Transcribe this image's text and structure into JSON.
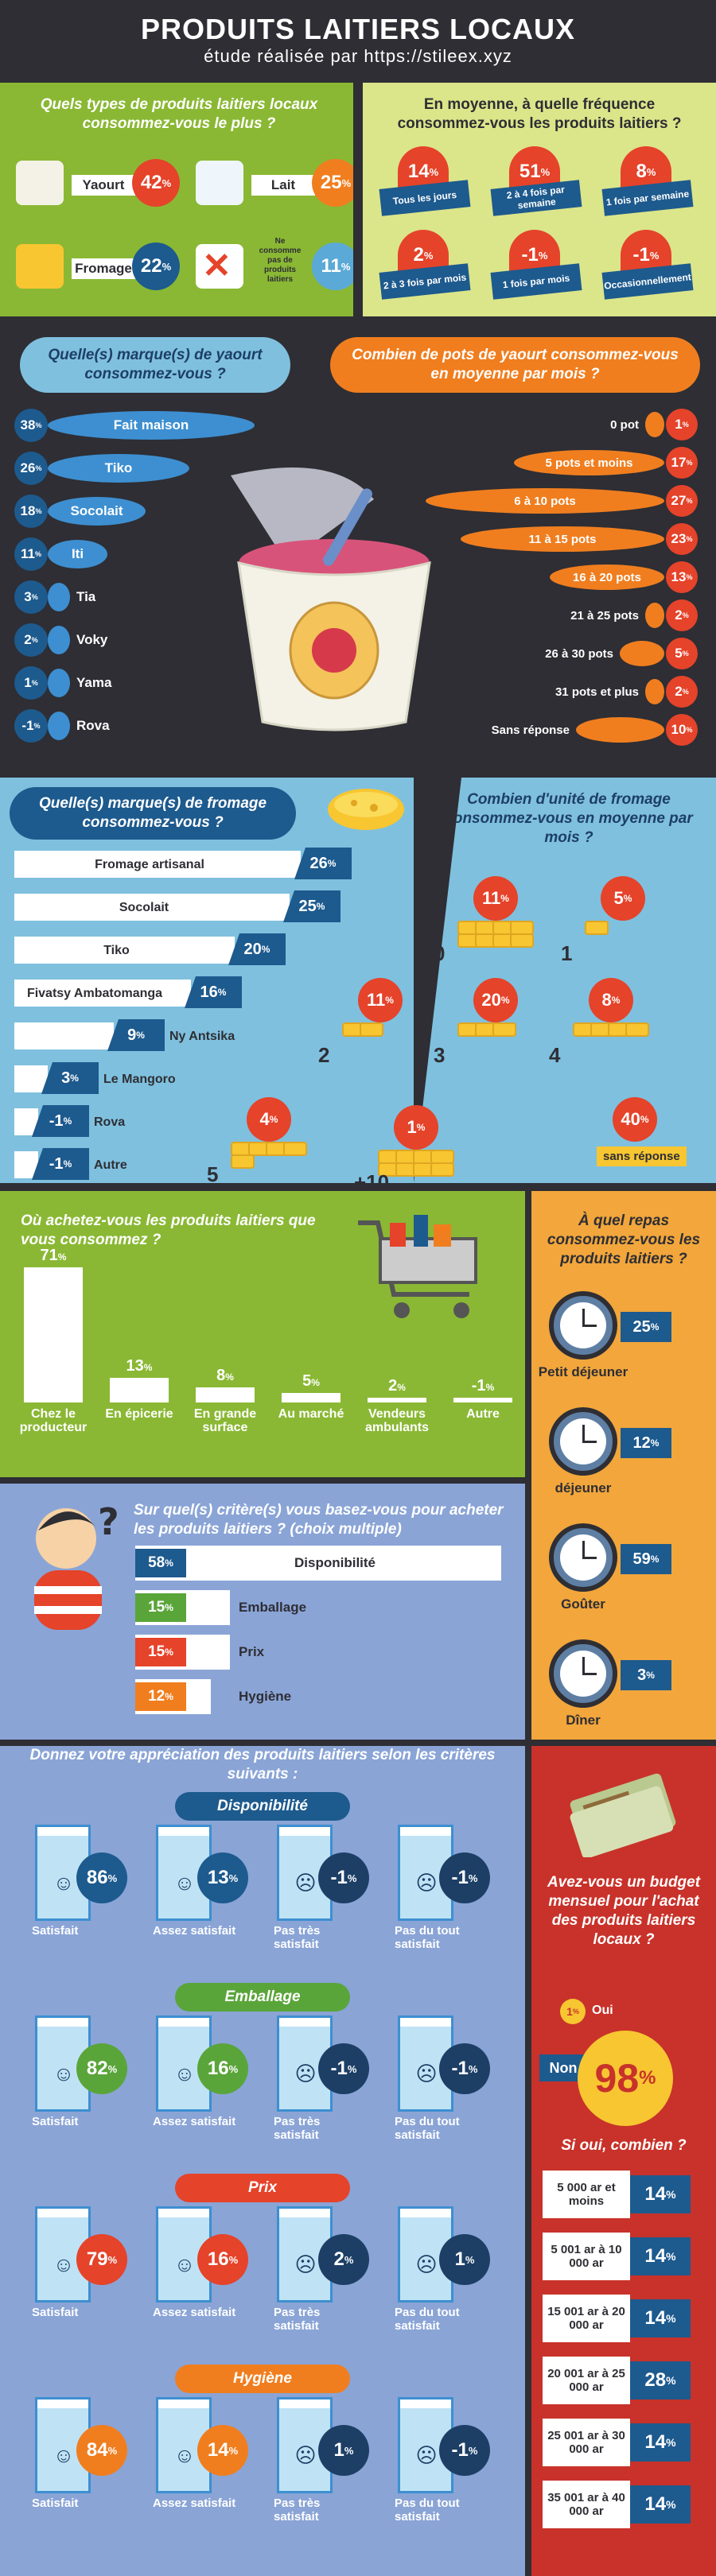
{
  "header": {
    "title": "PRODUITS LAITIERS LOCAUX",
    "subtitle": "étude réalisée par https://stileex.xyz"
  },
  "colors": {
    "orange": "#f07e1f",
    "red": "#e5432a",
    "blue": "#1d5a8e",
    "green": "#8ab834",
    "dark": "#2e2e34",
    "lightblue": "#7fc0de",
    "periwinkle": "#8aa4d6"
  },
  "types": {
    "question": "Quels types de produits laitiers locaux consommez-vous le plus ?",
    "items": [
      {
        "label": "Yaourt",
        "value": "42",
        "unit": "%"
      },
      {
        "label": "Lait",
        "value": "25",
        "unit": "%"
      },
      {
        "label": "Fromage",
        "value": "22",
        "unit": "%"
      },
      {
        "label": "Ne consomme pas de produits laitiers",
        "value": "11",
        "unit": "%"
      }
    ]
  },
  "frequency": {
    "question": "En moyenne, à quelle fréquence consommez-vous les produits laitiers ?",
    "items": [
      {
        "value": "14",
        "unit": "%",
        "label": "Tous les jours"
      },
      {
        "value": "51",
        "unit": "%",
        "label": "2 à 4 fois par semaine"
      },
      {
        "value": "8",
        "unit": "%",
        "label": "1 fois par semaine"
      },
      {
        "value": "2",
        "unit": "%",
        "label": "2 à 3 fois par mois"
      },
      {
        "value": "-1",
        "unit": "%",
        "label": "1 fois par mois"
      },
      {
        "value": "-1",
        "unit": "%",
        "label": "Occasionnellement"
      }
    ]
  },
  "yogurt_brands": {
    "question": "Quelle(s) marque(s) de yaourt consommez-vous ?",
    "items": [
      {
        "value": "38",
        "unit": "%",
        "label": "Fait maison"
      },
      {
        "value": "26",
        "unit": "%",
        "label": "Tiko"
      },
      {
        "value": "18",
        "unit": "%",
        "label": "Socolait"
      },
      {
        "value": "11",
        "unit": "%",
        "label": "Iti"
      },
      {
        "value": "3",
        "unit": "%",
        "label": "Tia"
      },
      {
        "value": "2",
        "unit": "%",
        "label": "Voky"
      },
      {
        "value": "1",
        "unit": "%",
        "label": "Yama"
      },
      {
        "value": "-1",
        "unit": "%",
        "label": "Rova"
      }
    ]
  },
  "yogurt_pots": {
    "question": "Combien de pots de yaourt consommez-vous en moyenne par mois ?",
    "items": [
      {
        "label": "0 pot",
        "value": "1",
        "unit": "%"
      },
      {
        "label": "5 pots et moins",
        "value": "17",
        "unit": "%"
      },
      {
        "label": "6 à 10 pots",
        "value": "27",
        "unit": "%"
      },
      {
        "label": "11 à 15 pots",
        "value": "23",
        "unit": "%"
      },
      {
        "label": "16 à 20 pots",
        "value": "13",
        "unit": "%"
      },
      {
        "label": "21 à 25 pots",
        "value": "2",
        "unit": "%"
      },
      {
        "label": "26 à 30 pots",
        "value": "5",
        "unit": "%"
      },
      {
        "label": "31 pots et plus",
        "value": "2",
        "unit": "%"
      },
      {
        "label": "Sans réponse",
        "value": "10",
        "unit": "%"
      }
    ]
  },
  "cheese_brands": {
    "question": "Quelle(s) marque(s) de fromage consommez-vous ?",
    "items": [
      {
        "label": "Fromage artisanal",
        "value": "26",
        "unit": "%"
      },
      {
        "label": "Socolait",
        "value": "25",
        "unit": "%"
      },
      {
        "label": "Tiko",
        "value": "20",
        "unit": "%"
      },
      {
        "label": "Fivatsy Ambatomanga",
        "value": "16",
        "unit": "%"
      },
      {
        "label": "Ny Antsika",
        "value": "9",
        "unit": "%"
      },
      {
        "label": "Le Mangoro",
        "value": "3",
        "unit": "%"
      },
      {
        "label": "Rova",
        "value": "-1",
        "unit": "%"
      },
      {
        "label": "Autre",
        "value": "-1",
        "unit": "%"
      }
    ]
  },
  "cheese_units": {
    "question": "Combien d'unité de fromage consommez-vous en moyenne par mois ?",
    "items": [
      {
        "label": "0",
        "value": "11",
        "unit": "%"
      },
      {
        "label": "1",
        "value": "5",
        "unit": "%"
      },
      {
        "label": "2",
        "value": "11",
        "unit": "%"
      },
      {
        "label": "3",
        "value": "20",
        "unit": "%"
      },
      {
        "label": "4",
        "value": "8",
        "unit": "%"
      },
      {
        "label": "5",
        "value": "4",
        "unit": "%"
      },
      {
        "label": "+10",
        "value": "1",
        "unit": "%"
      },
      {
        "label": "sans réponse",
        "value": "40",
        "unit": "%"
      }
    ]
  },
  "purchase": {
    "question": "Où achetez-vous les produits laitiers que vous consommez ?",
    "items": [
      {
        "label": "Chez le producteur",
        "value": "71",
        "unit": "%"
      },
      {
        "label": "En épicerie",
        "value": "13",
        "unit": "%"
      },
      {
        "label": "En grande surface",
        "value": "8",
        "unit": "%"
      },
      {
        "label": "Au marché",
        "value": "5",
        "unit": "%"
      },
      {
        "label": "Vendeurs ambulants",
        "value": "2",
        "unit": "%"
      },
      {
        "label": "Autre",
        "value": "-1",
        "unit": "%"
      }
    ]
  },
  "meal": {
    "question": "À quel repas consommez-vous les produits laitiers ?",
    "items": [
      {
        "label": "Petit déjeuner",
        "value": "25",
        "unit": "%"
      },
      {
        "label": "déjeuner",
        "value": "12",
        "unit": "%"
      },
      {
        "label": "Goûter",
        "value": "59",
        "unit": "%"
      },
      {
        "label": "Dîner",
        "value": "3",
        "unit": "%"
      }
    ]
  },
  "criteria": {
    "question": "Sur quel(s) critère(s) vous basez-vous pour acheter les produits laitiers ? (choix multiple)",
    "items": [
      {
        "label": "Disponibilité",
        "value": "58",
        "unit": "%"
      },
      {
        "label": "Emballage",
        "value": "15",
        "unit": "%"
      },
      {
        "label": "Prix",
        "value": "15",
        "unit": "%"
      },
      {
        "label": "Hygiène",
        "value": "12",
        "unit": "%"
      }
    ]
  },
  "appreciation": {
    "question": "Donnez votre appréciation des produits laitiers selon les critères suivants :",
    "levels": [
      "Satisfait",
      "Assez satisfait",
      "Pas très satisfait",
      "Pas du tout satisfait"
    ],
    "groups": [
      {
        "title": "Disponibilité",
        "values": [
          "86",
          "13",
          "-1",
          "-1"
        ]
      },
      {
        "title": "Emballage",
        "values": [
          "82",
          "16",
          "-1",
          "-1"
        ]
      },
      {
        "title": "Prix",
        "values": [
          "79",
          "16",
          "2",
          "1"
        ]
      },
      {
        "title": "Hygiène",
        "values": [
          "84",
          "14",
          "1",
          "-1"
        ]
      }
    ],
    "unit": "%"
  },
  "budget": {
    "question": "Avez-vous un budget mensuel pour l'achat des produits laitiers locaux ?",
    "oui_label": "Oui",
    "oui_value": "1",
    "non_label": "Non",
    "non_value": "98",
    "unit": "%",
    "amount_question": "Si oui, combien ?",
    "items": [
      {
        "label": "5 000 ar et moins",
        "value": "14",
        "unit": "%"
      },
      {
        "label": "5 001 ar à 10 000 ar",
        "value": "14",
        "unit": "%"
      },
      {
        "label": "15 001 ar à 20 000 ar",
        "value": "14",
        "unit": "%"
      },
      {
        "label": "20 001 ar à 25 000 ar",
        "value": "28",
        "unit": "%"
      },
      {
        "label": "25 001 ar à 30 000 ar",
        "value": "14",
        "unit": "%"
      },
      {
        "label": "35 001 ar à 40 000 ar",
        "value": "14",
        "unit": "%"
      }
    ]
  },
  "chart_data": [
    {
      "type": "bar",
      "title": "Quels types de produits laitiers locaux consommez-vous le plus ?",
      "categories": [
        "Yaourt",
        "Lait",
        "Fromage",
        "Ne consomme pas de produits laitiers"
      ],
      "values": [
        42,
        25,
        22,
        11
      ]
    },
    {
      "type": "bar",
      "title": "En moyenne, à quelle fréquence consommez-vous les produits laitiers ?",
      "categories": [
        "Tous les jours",
        "2 à 4 fois par semaine",
        "1 fois par semaine",
        "2 à 3 fois par mois",
        "1 fois par mois",
        "Occasionnellement"
      ],
      "values": [
        14,
        51,
        8,
        2,
        -1,
        -1
      ]
    },
    {
      "type": "bar",
      "title": "Quelle(s) marque(s) de yaourt consommez-vous ?",
      "categories": [
        "Fait maison",
        "Tiko",
        "Socolait",
        "Iti",
        "Tia",
        "Voky",
        "Yama",
        "Rova"
      ],
      "values": [
        38,
        26,
        18,
        11,
        3,
        2,
        1,
        -1
      ]
    },
    {
      "type": "bar",
      "title": "Combien de pots de yaourt consommez-vous en moyenne par mois ?",
      "categories": [
        "0 pot",
        "5 pots et moins",
        "6 à 10 pots",
        "11 à 15 pots",
        "16 à 20 pots",
        "21 à 25 pots",
        "26 à 30 pots",
        "31 pots et plus",
        "Sans réponse"
      ],
      "values": [
        1,
        17,
        27,
        23,
        13,
        2,
        5,
        2,
        10
      ]
    },
    {
      "type": "bar",
      "title": "Quelle(s) marque(s) de fromage consommez-vous ?",
      "categories": [
        "Fromage artisanal",
        "Socolait",
        "Tiko",
        "Fivatsy Ambatomanga",
        "Ny Antsika",
        "Le Mangoro",
        "Rova",
        "Autre"
      ],
      "values": [
        26,
        25,
        20,
        16,
        9,
        3,
        -1,
        -1
      ]
    },
    {
      "type": "bar",
      "title": "Combien d'unité de fromage consommez-vous en moyenne par mois ?",
      "categories": [
        "0",
        "1",
        "2",
        "3",
        "4",
        "5",
        "+10",
        "sans réponse"
      ],
      "values": [
        11,
        5,
        11,
        20,
        8,
        4,
        1,
        40
      ]
    },
    {
      "type": "bar",
      "title": "Où achetez-vous les produits laitiers que vous consommez ?",
      "categories": [
        "Chez le producteur",
        "En épicerie",
        "En grande surface",
        "Au marché",
        "Vendeurs ambulants",
        "Autre"
      ],
      "values": [
        71,
        13,
        8,
        5,
        2,
        -1
      ]
    },
    {
      "type": "bar",
      "title": "À quel repas consommez-vous les produits laitiers ?",
      "categories": [
        "Petit déjeuner",
        "déjeuner",
        "Goûter",
        "Dîner"
      ],
      "values": [
        25,
        12,
        59,
        3
      ]
    },
    {
      "type": "bar",
      "title": "Sur quel(s) critère(s) vous basez-vous pour acheter les produits laitiers ? (choix multiple)",
      "categories": [
        "Disponibilité",
        "Emballage",
        "Prix",
        "Hygiène"
      ],
      "values": [
        58,
        15,
        15,
        12
      ]
    },
    {
      "type": "bar",
      "title": "Donnez votre appréciation des produits laitiers selon les critères suivants :",
      "categories": [
        "Satisfait",
        "Assez satisfait",
        "Pas très satisfait",
        "Pas du tout satisfait"
      ],
      "series": [
        {
          "name": "Disponibilité",
          "values": [
            86,
            13,
            -1,
            -1
          ]
        },
        {
          "name": "Emballage",
          "values": [
            82,
            16,
            -1,
            -1
          ]
        },
        {
          "name": "Prix",
          "values": [
            79,
            16,
            2,
            1
          ]
        },
        {
          "name": "Hygiène",
          "values": [
            84,
            14,
            1,
            -1
          ]
        }
      ]
    },
    {
      "type": "pie",
      "title": "Avez-vous un budget mensuel pour l'achat des produits laitiers locaux ?",
      "categories": [
        "Oui",
        "Non"
      ],
      "values": [
        1,
        98
      ]
    },
    {
      "type": "bar",
      "title": "Si oui, combien ?",
      "categories": [
        "5 000 ar et moins",
        "5 001 ar à 10 000 ar",
        "15 001 ar à 20 000 ar",
        "20 001 ar à 25 000 ar",
        "25 001 ar à 30 000 ar",
        "35 001 ar à 40 000 ar"
      ],
      "values": [
        14,
        14,
        14,
        28,
        14,
        14
      ]
    }
  ]
}
